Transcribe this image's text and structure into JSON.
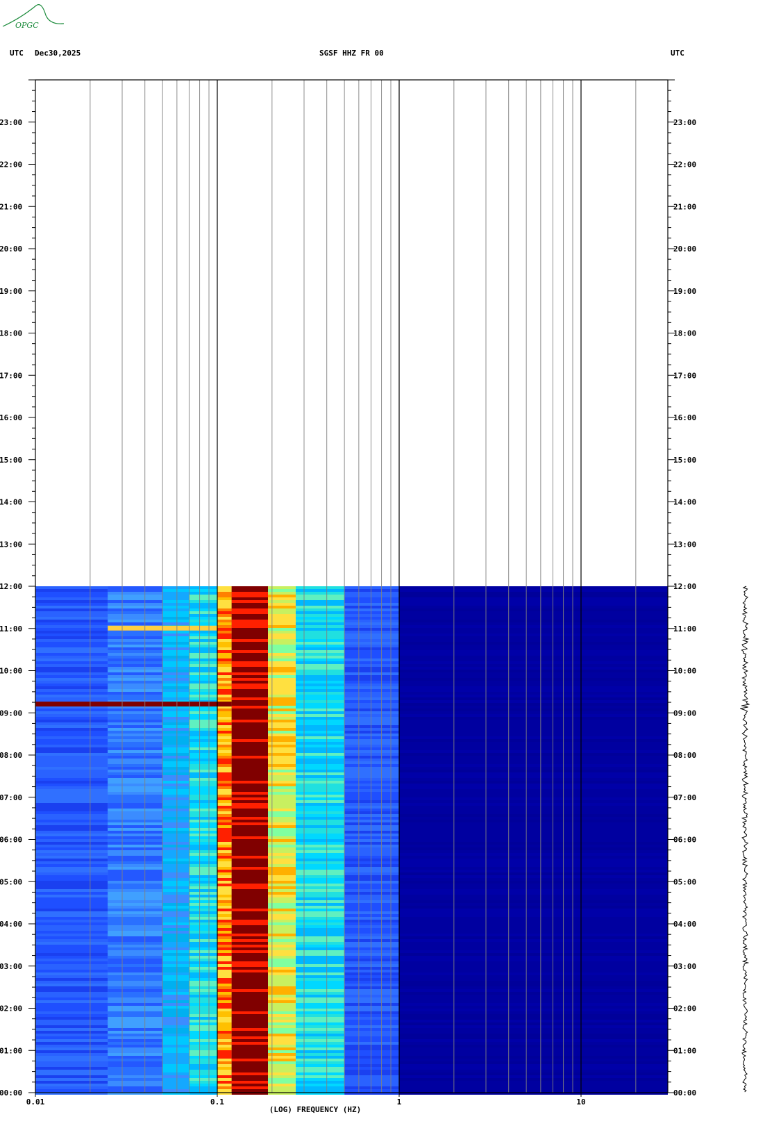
{
  "header": {
    "left_utc": "UTC",
    "date": "Dec30,2025",
    "station": "SGSF HHZ FR 00",
    "right_utc": "UTC",
    "logo_text": "OPGC"
  },
  "colors": {
    "frame": "#000000",
    "grid_minor": "#808080",
    "grid_major": "#000000",
    "bg_low": "#0000a0",
    "low_blue": "#1f4fff",
    "cyan": "#00c8ff",
    "yellow": "#ffe040",
    "red": "#ff2000",
    "dark_red": "#800000",
    "logo": "#1a8a3a"
  },
  "chart_data": {
    "type": "heatmap",
    "title": "SGSF HHZ FR 00",
    "xlabel": "(LOG) FREQUENCY (HZ)",
    "ylabel": "",
    "x_scale": "log",
    "xlim": [
      0.01,
      30
    ],
    "x_tick_labels": [
      "0.01",
      "0.1",
      "1",
      "10"
    ],
    "x_tick_values": [
      0.01,
      0.1,
      1,
      10
    ],
    "y_tick_labels": [
      "00:00",
      "01:00",
      "02:00",
      "03:00",
      "04:00",
      "05:00",
      "06:00",
      "07:00",
      "08:00",
      "09:00",
      "10:00",
      "11:00",
      "12:00",
      "13:00",
      "14:00",
      "15:00",
      "16:00",
      "17:00",
      "18:00",
      "19:00",
      "20:00",
      "21:00",
      "22:00",
      "23:00"
    ],
    "ylim_hours": [
      0,
      24
    ],
    "data_end_hour": 12,
    "bands": [
      {
        "f_start": 0.01,
        "f_end": 0.025,
        "level": "blue"
      },
      {
        "f_start": 0.025,
        "f_end": 0.05,
        "level": "blue-light"
      },
      {
        "f_start": 0.05,
        "f_end": 0.07,
        "level": "cyan-blue"
      },
      {
        "f_start": 0.07,
        "f_end": 0.1,
        "level": "cyan"
      },
      {
        "f_start": 0.1,
        "f_end": 0.12,
        "level": "yellow-red"
      },
      {
        "f_start": 0.12,
        "f_end": 0.19,
        "level": "dark-red"
      },
      {
        "f_start": 0.19,
        "f_end": 0.27,
        "level": "yellow-green"
      },
      {
        "f_start": 0.27,
        "f_end": 0.5,
        "level": "cyan"
      },
      {
        "f_start": 0.5,
        "f_end": 1.0,
        "level": "blue"
      },
      {
        "f_start": 1.0,
        "f_end": 30,
        "level": "dark-blue"
      }
    ],
    "events": [
      {
        "time_hour": 9.2,
        "f_start": 0.01,
        "f_end": 0.12,
        "level": "red"
      },
      {
        "time_hour": 11.0,
        "f_start": 0.025,
        "f_end": 0.1,
        "level": "yellow"
      }
    ]
  }
}
